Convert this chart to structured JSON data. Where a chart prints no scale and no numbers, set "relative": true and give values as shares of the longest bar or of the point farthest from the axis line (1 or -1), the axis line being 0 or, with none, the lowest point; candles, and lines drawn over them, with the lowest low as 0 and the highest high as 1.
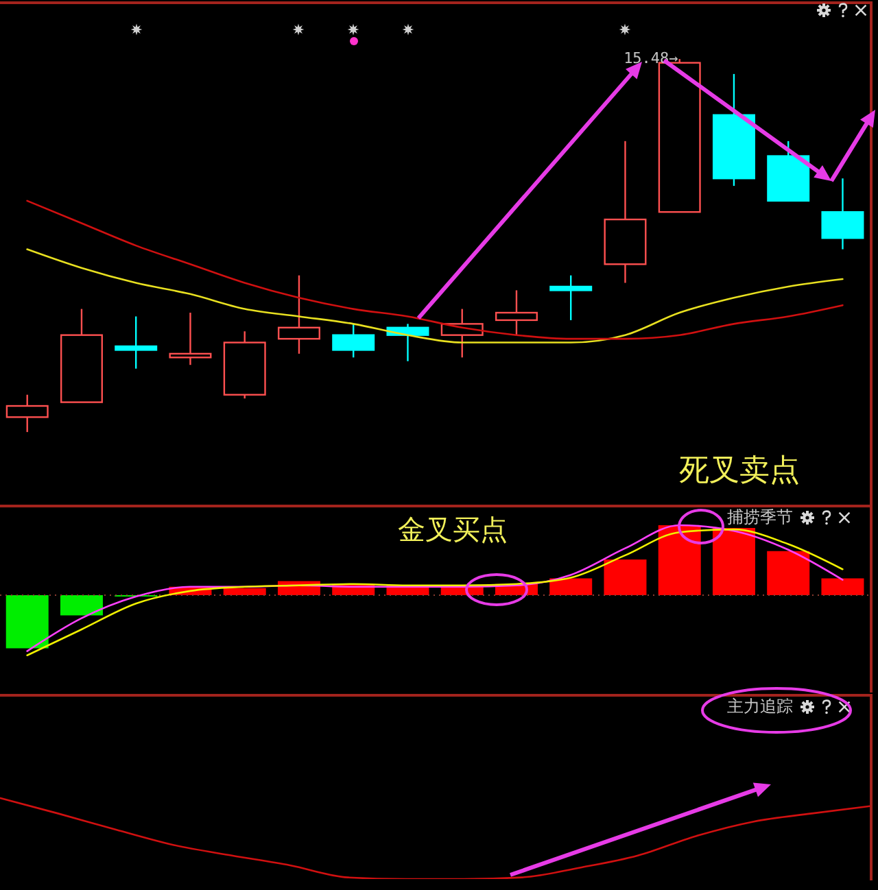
{
  "chart_data": [
    {
      "type": "candlestick",
      "relative": true,
      "categories": [
        null,
        null,
        null,
        null,
        null,
        null,
        null,
        null,
        null,
        null,
        null,
        null,
        null,
        null,
        null,
        null
      ],
      "ohlc": [
        [
          0.04,
          0.1,
          0,
          0.07
        ],
        [
          0.08,
          0.33,
          0.08,
          0.26
        ],
        [
          0.23,
          0.31,
          0.17,
          0.22
        ],
        [
          0.2,
          0.32,
          0.18,
          0.21
        ],
        [
          0.1,
          0.27,
          0.09,
          0.24
        ],
        [
          0.25,
          0.42,
          0.21,
          0.28
        ],
        [
          0.26,
          0.29,
          0.2,
          0.22
        ],
        [
          0.28,
          0.29,
          0.19,
          0.26
        ],
        [
          0.26,
          0.33,
          0.2,
          0.29
        ],
        [
          0.3,
          0.38,
          0.26,
          0.32
        ],
        [
          0.39,
          0.42,
          0.3,
          0.38
        ],
        [
          0.45,
          0.78,
          0.4,
          0.57
        ],
        [
          0.59,
          1,
          0.59,
          0.99
        ],
        [
          0.85,
          0.96,
          0.66,
          0.68
        ],
        [
          0.74,
          0.78,
          0.62,
          0.62
        ],
        [
          0.59,
          0.68,
          0.49,
          0.52
        ]
      ],
      "colors": [
        "#ff5050",
        "#ff5050",
        "#00ffff",
        "#ff5050",
        "#ff5050",
        "#ff5050",
        "#00ffff",
        "#00ffff",
        "#ff5050",
        "#ff5050",
        "#00ffff",
        "#ff5050",
        "#ff5050",
        "#00ffff",
        "#00ffff",
        "#00ffff"
      ],
      "series": [
        {
          "type": "line",
          "color": "#e8e020",
          "values": [
            0.49,
            0.44,
            0.4,
            0.37,
            0.33,
            0.31,
            0.29,
            0.26,
            0.24,
            0.24,
            0.24,
            0.26,
            0.32,
            0.36,
            0.39,
            0.41
          ]
        },
        {
          "type": "line",
          "color": "#d01010",
          "values": [
            0.62,
            0.56,
            0.5,
            0.45,
            0.4,
            0.36,
            0.33,
            0.31,
            0.28,
            0.26,
            0.25,
            0.25,
            0.26,
            0.29,
            0.31,
            0.34
          ]
        }
      ],
      "annotations": [
        "15.48→",
        "死叉卖点"
      ],
      "tick_labels": false
    },
    {
      "type": "bar",
      "relative": true,
      "title": "捕捞季节",
      "categories": [
        null,
        null,
        null,
        null,
        null,
        null,
        null,
        null,
        null,
        null,
        null,
        null,
        null,
        null,
        null,
        null
      ],
      "series": [
        {
          "type": "bar",
          "values": [
            -0.76,
            -0.29,
            -0.02,
            0.12,
            0.1,
            0.2,
            0.16,
            0.14,
            0.12,
            0.16,
            0.24,
            0.51,
            1,
            0.96,
            0.63,
            0.24
          ],
          "colors": [
            "#00ee00",
            "#00ee00",
            "#00ee00",
            "#ff0000",
            "#ff0000",
            "#ff0000",
            "#ff0000",
            "#ff0000",
            "#ff0000",
            "#ff0000",
            "#ff0000",
            "#ff0000",
            "#ff0000",
            "#ff0000",
            "#ff0000",
            "#ff0000"
          ]
        },
        {
          "type": "line",
          "color": "#ff40ff",
          "values": [
            -0.8,
            -0.33,
            -0.02,
            0.12,
            0.12,
            0.14,
            0.12,
            0.12,
            0.12,
            0.14,
            0.29,
            0.67,
            1.0,
            0.92,
            0.65,
            0.22
          ]
        },
        {
          "type": "line",
          "color": "#f0f000",
          "values": [
            -0.86,
            -0.49,
            -0.12,
            0.06,
            0.12,
            0.14,
            0.16,
            0.14,
            0.14,
            0.16,
            0.25,
            0.57,
            0.9,
            0.94,
            0.73,
            0.37
          ]
        }
      ],
      "ref_lines": [
        {
          "axis": "y",
          "value": 0,
          "color": "#8a3a30",
          "line_style": "dotted"
        }
      ],
      "annotations": [
        "金叉买点"
      ],
      "tick_labels": false
    },
    {
      "type": "line",
      "relative": true,
      "title": "主力追踪",
      "categories": [
        null,
        null,
        null,
        null,
        null,
        null,
        null,
        null,
        null,
        null,
        null,
        null,
        null,
        null,
        null,
        null
      ],
      "series": [
        {
          "color": "#d01010",
          "values": [
            1.0,
            0.81,
            0.61,
            0.42,
            0.29,
            0.17,
            0.02,
            0,
            0,
            0.02,
            0.14,
            0.29,
            0.53,
            0.71,
            0.81,
            0.9
          ]
        }
      ],
      "tick_labels": false
    }
  ]
}
